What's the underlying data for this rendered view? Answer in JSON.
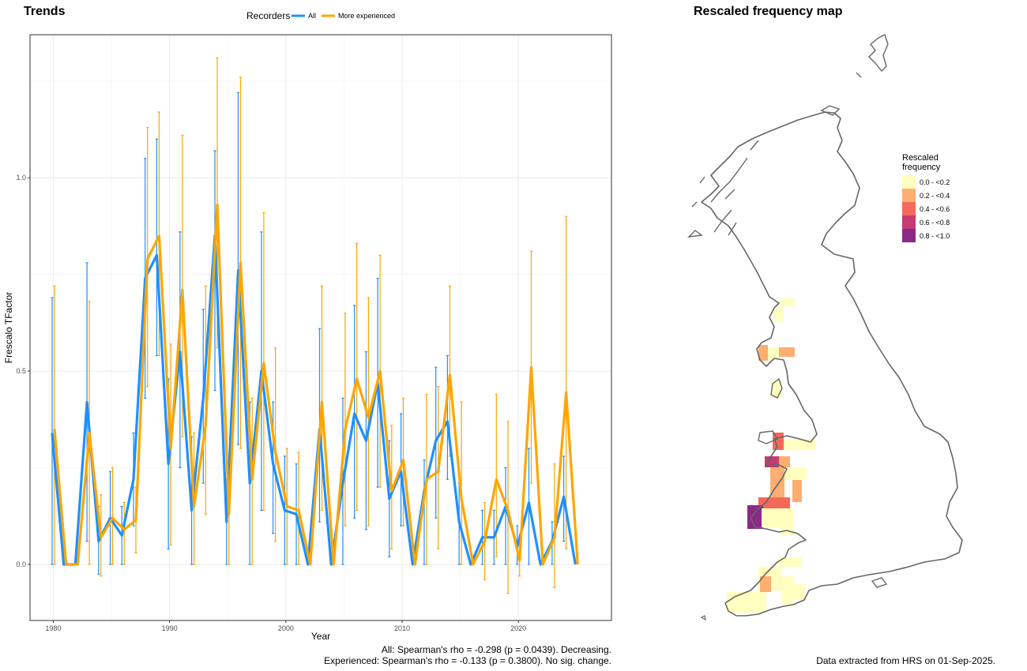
{
  "left_title": "Trends",
  "right_title": "Rescaled frequency map",
  "legend": {
    "title": "Recorders",
    "items": [
      {
        "label": "All",
        "color": "#1E90FF"
      },
      {
        "label": "More experienced",
        "color": "#FFA500"
      }
    ]
  },
  "captions": {
    "stats_all": "All: Spearman's rho = -0.298 (p = 0.0439). Decreasing.",
    "stats_experienced": "Experienced: Spearman's rho = -0.133 (p = 0.3800). No sig. change.",
    "data_note": "Data extracted from HRS on 01-Sep-2025."
  },
  "map_legend": {
    "title_line1": "Rescaled",
    "title_line2": "frequency",
    "items": [
      {
        "label": "0.0 - <0.2",
        "color": "#FFFFBF"
      },
      {
        "label": "0.2 - <0.4",
        "color": "#FDAE71"
      },
      {
        "label": "0.4 - <0.6",
        "color": "#F4695A"
      },
      {
        "label": "0.6 - <0.8",
        "color": "#C73A72"
      },
      {
        "label": "0.8 - <1.0",
        "color": "#8A2A85"
      }
    ]
  },
  "chart_data": {
    "type": "line",
    "title": "Trends",
    "xlabel": "Year",
    "ylabel": "Frescalo TFactor",
    "xlim": [
      1978,
      2028
    ],
    "ylim": [
      -0.145,
      1.37
    ],
    "xticks": [
      1980,
      1990,
      2000,
      2010,
      2020
    ],
    "yticks": [
      0.0,
      0.5,
      1.0
    ],
    "ytick_labels": [
      "0.0",
      "0.5",
      "1.0"
    ],
    "grid": true,
    "legend_position": "top",
    "series": [
      {
        "name": "All",
        "color": "#1E90FF",
        "x": [
          1980,
          1981,
          1982,
          1983,
          1984,
          1985,
          1986,
          1987,
          1988,
          1989,
          1990,
          1991,
          1992,
          1993,
          1994,
          1995,
          1996,
          1997,
          1998,
          1999,
          2000,
          2001,
          2002,
          2003,
          2004,
          2005,
          2006,
          2007,
          2008,
          2009,
          2010,
          2011,
          2012,
          2013,
          2014,
          2015,
          2016,
          2017,
          2018,
          2019,
          2020,
          2021,
          2022,
          2023,
          2024,
          2025
        ],
        "y": [
          0.34,
          0.0,
          0.0,
          0.42,
          0.06,
          0.12,
          0.075,
          0.22,
          0.74,
          0.8,
          0.26,
          0.55,
          0.14,
          0.43,
          0.85,
          0.11,
          0.76,
          0.21,
          0.5,
          0.26,
          0.14,
          0.13,
          0.0,
          0.35,
          0.0,
          0.21,
          0.39,
          0.32,
          0.47,
          0.17,
          0.24,
          0.0,
          0.19,
          0.32,
          0.37,
          0.11,
          0.0,
          0.07,
          0.07,
          0.15,
          0.045,
          0.16,
          0.0,
          0.06,
          0.175,
          0.0
        ],
        "lower": [
          0.0,
          0.0,
          0.0,
          0.06,
          -0.025,
          0.0,
          0.0,
          0.1,
          0.43,
          0.54,
          0.04,
          0.25,
          0.0,
          0.21,
          0.45,
          0.0,
          0.31,
          0.0,
          0.14,
          0.08,
          0.0,
          0.0,
          0.0,
          0.11,
          0.0,
          0.0,
          0.12,
          0.09,
          0.2,
          0.02,
          0.1,
          0.0,
          0.0,
          0.12,
          0.22,
          0.0,
          0.0,
          0.0,
          0.0,
          0.0,
          0.0,
          0.0,
          0.0,
          0.0,
          0.06,
          0.0
        ],
        "upper": [
          0.69,
          0.0,
          0.0,
          0.78,
          0.15,
          0.24,
          0.15,
          0.34,
          1.05,
          1.1,
          0.48,
          0.86,
          0.33,
          0.66,
          1.07,
          0.22,
          1.22,
          0.42,
          0.86,
          0.42,
          0.28,
          0.26,
          0.0,
          0.61,
          0.0,
          0.43,
          0.67,
          0.55,
          0.74,
          0.32,
          0.39,
          0.0,
          0.27,
          0.51,
          0.54,
          0.21,
          0.0,
          0.14,
          0.14,
          0.25,
          0.1,
          0.3,
          0.0,
          0.11,
          0.28,
          0.0
        ]
      },
      {
        "name": "More experienced",
        "color": "#FFA500",
        "x": [
          1980,
          1981,
          1982,
          1983,
          1984,
          1985,
          1986,
          1987,
          1988,
          1989,
          1990,
          1991,
          1992,
          1993,
          1994,
          1995,
          1996,
          1997,
          1998,
          1999,
          2000,
          2001,
          2002,
          2003,
          2004,
          2005,
          2006,
          2007,
          2008,
          2009,
          2010,
          2011,
          2012,
          2013,
          2014,
          2015,
          2016,
          2017,
          2018,
          2019,
          2020,
          2021,
          2022,
          2023,
          2024,
          2025
        ],
        "y": [
          0.35,
          0.0,
          0.0,
          0.34,
          0.07,
          0.12,
          0.09,
          0.115,
          0.79,
          0.85,
          0.3,
          0.71,
          0.15,
          0.36,
          0.93,
          0.13,
          0.78,
          0.22,
          0.52,
          0.29,
          0.15,
          0.14,
          0.0,
          0.42,
          0.0,
          0.35,
          0.48,
          0.38,
          0.5,
          0.19,
          0.27,
          0.0,
          0.22,
          0.24,
          0.49,
          0.17,
          0.0,
          0.06,
          0.22,
          0.14,
          0.01,
          0.51,
          0.0,
          0.07,
          0.445,
          0.0
        ],
        "lower": [
          0.0,
          0.0,
          0.0,
          0.0,
          -0.03,
          0.0,
          0.0,
          0.03,
          0.46,
          0.54,
          0.05,
          0.33,
          0.0,
          0.13,
          0.56,
          0.0,
          0.3,
          0.0,
          0.14,
          0.06,
          0.0,
          0.0,
          0.0,
          0.14,
          0.0,
          0.1,
          0.14,
          0.1,
          0.2,
          0.04,
          0.1,
          0.0,
          0.0,
          0.04,
          0.28,
          0.0,
          0.0,
          -0.04,
          0.02,
          -0.075,
          -0.03,
          0.21,
          0.0,
          -0.06,
          0.04,
          0.0
        ],
        "upper": [
          0.72,
          0.0,
          0.0,
          0.68,
          0.18,
          0.25,
          0.16,
          0.2,
          1.13,
          1.17,
          0.57,
          1.11,
          0.34,
          0.72,
          1.31,
          0.26,
          1.26,
          0.43,
          0.91,
          0.56,
          0.3,
          0.29,
          0.0,
          0.72,
          0.0,
          0.65,
          0.83,
          0.69,
          0.8,
          0.36,
          0.43,
          0.0,
          0.44,
          0.46,
          0.72,
          0.42,
          0.0,
          0.16,
          0.44,
          0.37,
          0.06,
          0.81,
          0.0,
          0.26,
          0.9,
          0.0
        ]
      }
    ]
  }
}
